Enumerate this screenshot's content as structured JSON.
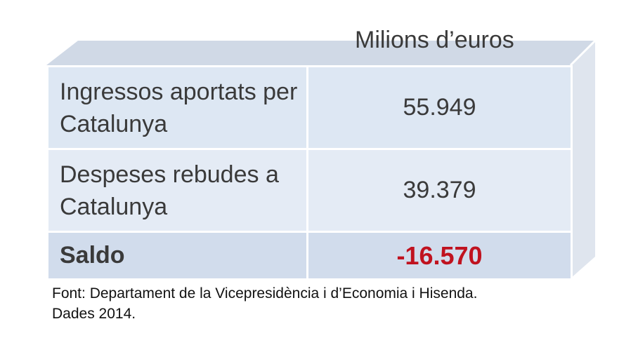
{
  "header": {
    "units_label": "Milions d’euros"
  },
  "table": {
    "rows": [
      {
        "label": "Ingressos aportats per Catalunya",
        "value": "55.949"
      },
      {
        "label": "Despeses rebudes a Catalunya",
        "value": "39.379"
      }
    ],
    "total": {
      "label": "Saldo",
      "value": "-16.570"
    }
  },
  "source": {
    "line1": "Font: Departament de la Vicepresidència i d’Economia i Hisenda.",
    "line2": "Dades 2014."
  },
  "colors": {
    "cell_fill": "#dde7f3",
    "total_fill": "#d1dcec",
    "top_face": "#d0d9e6",
    "side_face": "#dfe5ee",
    "negative_value": "#c0121f"
  }
}
